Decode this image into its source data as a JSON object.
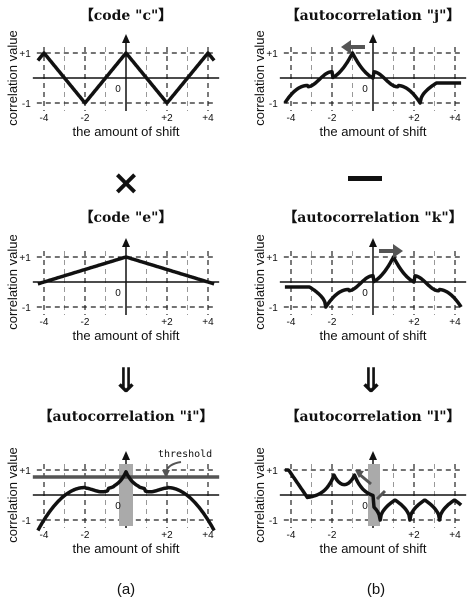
{
  "panels": [
    {
      "id": "c",
      "title": "【code \"c\"】",
      "ylabel": "correlation value",
      "xlabel": "the amount of shift",
      "yticks": [
        "+1",
        "-1"
      ],
      "xticks": [
        "-4",
        "-2",
        "0",
        "+2",
        "+4"
      ],
      "curve": "c"
    },
    {
      "id": "j",
      "title": "【autocorrelation \"j\"】",
      "ylabel": "correlation value",
      "xlabel": "the amount of shift",
      "yticks": [
        "+1",
        "-1"
      ],
      "xticks": [
        "-4",
        "-2",
        "0",
        "+2",
        "+4"
      ],
      "curve": "j"
    },
    {
      "id": "e",
      "title": "【code \"e\"】",
      "ylabel": "correlation value",
      "xlabel": "the amount of shift",
      "yticks": [
        "+1",
        "-1"
      ],
      "xticks": [
        "-4",
        "-2",
        "0",
        "+2",
        "+4"
      ],
      "curve": "e"
    },
    {
      "id": "k",
      "title": "【autocorrelation \"k\"】",
      "ylabel": "correlation value",
      "xlabel": "the amount of shift",
      "yticks": [
        "+1",
        "-1"
      ],
      "xticks": [
        "-4",
        "-2",
        "0",
        "+2",
        "+4"
      ],
      "curve": "k"
    },
    {
      "id": "i",
      "title": "【autocorrelation \"i\"】",
      "ylabel": "correlation value",
      "xlabel": "the amount of shift",
      "yticks": [
        "+1",
        "-1"
      ],
      "xticks": [
        "-4",
        "-2",
        "0",
        "+2",
        "+4"
      ],
      "curve": "i",
      "annotation": "threshold"
    },
    {
      "id": "l",
      "title": "【autocorrelation \"l\"】",
      "ylabel": "correlation value",
      "xlabel": "the amount of shift",
      "yticks": [
        "+1",
        "-1"
      ],
      "xticks": [
        "-4",
        "-2",
        "0",
        "+2",
        "+4"
      ],
      "curve": "l"
    }
  ],
  "operators": {
    "multiply": "×",
    "implies": "⇓"
  },
  "captions": {
    "left": "(a)",
    "right": "(b)"
  },
  "colors": {
    "curve": "#111111",
    "arrow": "#555555",
    "threshold": "#555555",
    "band": "#aaaaaa"
  }
}
